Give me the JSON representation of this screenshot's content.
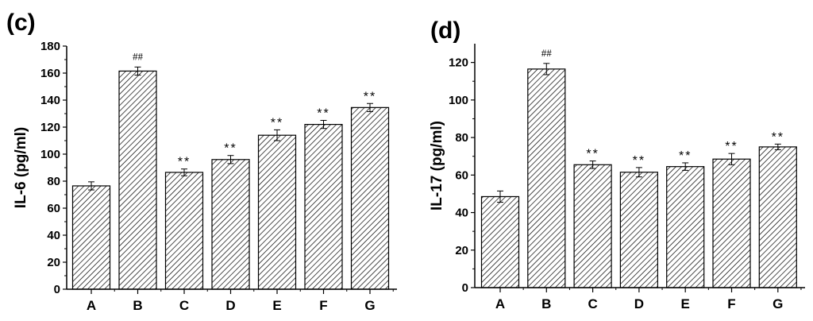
{
  "chart_data": [
    {
      "type": "bar",
      "panel": "(c)",
      "ylabel": "IL-6 (pg/ml)",
      "categories": [
        "A",
        "B",
        "C",
        "D",
        "E",
        "F",
        "G"
      ],
      "values": [
        76.5,
        161.5,
        86.5,
        96,
        114,
        122,
        134.5
      ],
      "errors": [
        3,
        3,
        2.5,
        3,
        4,
        3,
        3
      ],
      "annotations": [
        "",
        "##",
        "**",
        "**",
        "**",
        "**",
        "**"
      ],
      "ylim": [
        0,
        180
      ],
      "yticks": [
        0,
        20,
        40,
        60,
        80,
        100,
        120,
        140,
        160,
        180
      ],
      "pattern": "diagonal-hatch"
    },
    {
      "type": "bar",
      "panel": "(d)",
      "ylabel": "IL-17 (pg/ml)",
      "categories": [
        "A",
        "B",
        "C",
        "D",
        "E",
        "F",
        "G"
      ],
      "values": [
        48.5,
        116.5,
        65.5,
        61.5,
        64.5,
        68.5,
        75
      ],
      "errors": [
        3,
        3,
        2,
        2.5,
        2,
        3,
        1.5
      ],
      "annotations": [
        "",
        "##",
        "**",
        "**",
        "**",
        "**",
        "**"
      ],
      "ylim": [
        0,
        130
      ],
      "yticks": [
        0,
        20,
        40,
        60,
        80,
        100,
        120
      ],
      "pattern": "diagonal-hatch"
    }
  ]
}
